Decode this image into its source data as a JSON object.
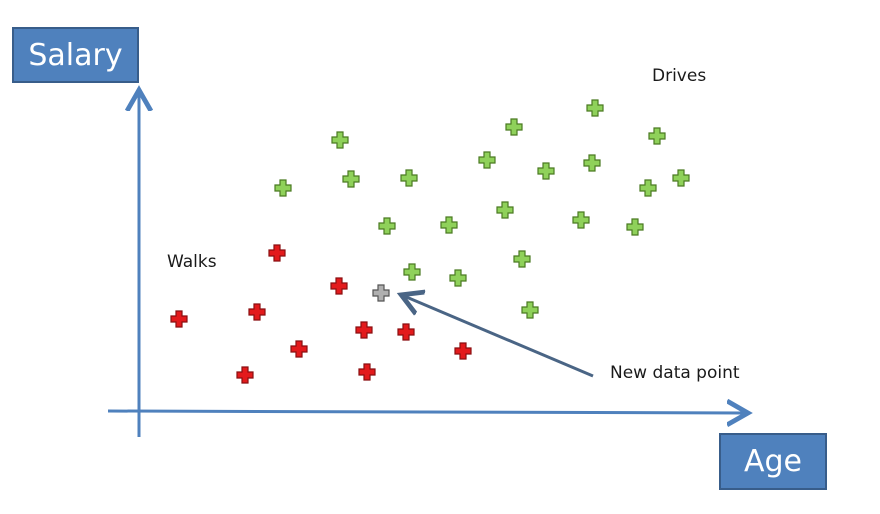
{
  "labels": {
    "y_axis": "Salary",
    "x_axis": "Age",
    "class_a": "Walks",
    "class_b": "Drives",
    "new_point": "New data point"
  },
  "colors": {
    "axis": "#4f81bd",
    "label_box": "#4f81bd",
    "walks_fill": "#e31a1c",
    "drives_fill": "#8fd15a",
    "new_fill": "#b0b0b0"
  },
  "points": {
    "drives": [
      [
        595,
        108
      ],
      [
        514,
        127
      ],
      [
        657,
        136
      ],
      [
        340,
        140
      ],
      [
        487,
        160
      ],
      [
        592,
        163
      ],
      [
        546,
        171
      ],
      [
        351,
        179
      ],
      [
        409,
        178
      ],
      [
        283,
        188
      ],
      [
        648,
        188
      ],
      [
        681,
        178
      ],
      [
        505,
        210
      ],
      [
        581,
        220
      ],
      [
        387,
        226
      ],
      [
        449,
        225
      ],
      [
        635,
        227
      ],
      [
        522,
        259
      ],
      [
        412,
        272
      ],
      [
        458,
        278
      ],
      [
        530,
        310
      ]
    ],
    "walks": [
      [
        277,
        253
      ],
      [
        339,
        286
      ],
      [
        179,
        319
      ],
      [
        257,
        312
      ],
      [
        364,
        330
      ],
      [
        406,
        332
      ],
      [
        299,
        349
      ],
      [
        463,
        351
      ],
      [
        245,
        375
      ],
      [
        367,
        372
      ]
    ],
    "new": [
      [
        381,
        293
      ]
    ]
  }
}
